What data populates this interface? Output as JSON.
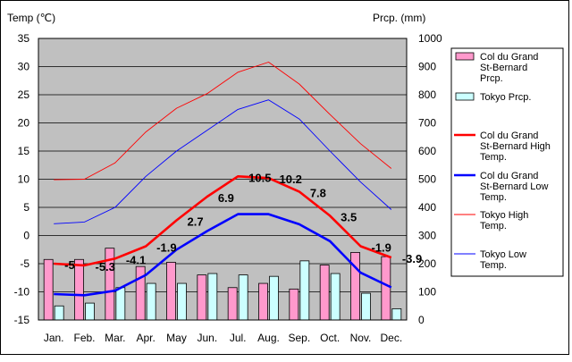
{
  "chart_data": {
    "type": "bar+line",
    "title": "",
    "left_axis_label": "Temp (℃)",
    "right_axis_label": "Prcp. (mm)",
    "left_ylim": [
      -15,
      35
    ],
    "left_ticks": [
      35,
      30,
      25,
      20,
      15,
      10,
      5,
      0,
      -5,
      -10,
      -15
    ],
    "right_ylim": [
      0,
      1000
    ],
    "right_ticks": [
      1000,
      900,
      800,
      700,
      600,
      500,
      400,
      300,
      200,
      100,
      0
    ],
    "categories": [
      "Jan.",
      "Feb.",
      "Mar.",
      "Apr.",
      "May",
      "Jun.",
      "Jul.",
      "Aug.",
      "Sep.",
      "Oct.",
      "Nov.",
      "Dec."
    ],
    "bar_series": [
      {
        "name": "Col du Grand St-Bernard Prcp.",
        "axis": "right",
        "color": "#ff99cc",
        "values": [
          215,
          215,
          255,
          190,
          205,
          160,
          115,
          130,
          110,
          195,
          240,
          225
        ]
      },
      {
        "name": "Tokyo Prcp.",
        "axis": "right",
        "color": "#ccffff",
        "values": [
          50,
          60,
          115,
          130,
          130,
          165,
          160,
          155,
          210,
          165,
          95,
          40
        ]
      }
    ],
    "line_series": [
      {
        "name": "Col du Grand St-Bernard High Temp.",
        "axis": "left",
        "color": "#ff0000",
        "width": 2.6,
        "values": [
          -5,
          -5.3,
          -4.1,
          -1.9,
          2.7,
          6.9,
          10.5,
          10.2,
          7.8,
          3.5,
          -1.9,
          -3.9
        ],
        "labels": [
          "-5",
          "-5.3",
          "-4.1",
          "-1.9",
          "2.7",
          "6.9",
          "10.5",
          "10.2",
          "7.8",
          "3.5",
          "-1.9",
          "-3.9"
        ]
      },
      {
        "name": "Col du Grand St-Bernard Low Temp.",
        "axis": "left",
        "color": "#0000ff",
        "width": 2.6,
        "values": [
          -10.4,
          -10.6,
          -9.8,
          -7,
          -2.5,
          0.8,
          3.8,
          3.8,
          2,
          -1,
          -6.6,
          -9.2
        ]
      },
      {
        "name": "Tokyo High Temp.",
        "axis": "left",
        "color": "#ff0000",
        "width": 0.9,
        "values": [
          9.9,
          10,
          12.9,
          18.4,
          22.6,
          25.2,
          29,
          30.8,
          26.9,
          21.5,
          16.3,
          11.9
        ]
      },
      {
        "name": "Tokyo Low Temp.",
        "axis": "left",
        "color": "#0000ff",
        "width": 0.9,
        "values": [
          2.1,
          2.4,
          5,
          10.5,
          15,
          18.7,
          22.4,
          24.1,
          20.7,
          15,
          9.5,
          4.6
        ]
      }
    ],
    "legend": [
      {
        "label": "Col du Grand St-Bernard Prcp.",
        "kind": "bar",
        "color": "#ff99cc",
        "lines": [
          "Col du Grand",
          "St-Bernard",
          "Prcp."
        ]
      },
      {
        "label": "Tokyo Prcp.",
        "kind": "bar",
        "color": "#ccffff",
        "lines": [
          "Tokyo Prcp."
        ]
      },
      {
        "label": "Col du Grand St-Bernard High Temp.",
        "kind": "line",
        "color": "#ff0000",
        "width": 2.6,
        "lines": [
          "Col du Grand",
          "St-Bernard High",
          "Temp."
        ]
      },
      {
        "label": "Col du Grand St-Bernard Low Temp.",
        "kind": "line",
        "color": "#0000ff",
        "width": 2.6,
        "lines": [
          "Col du Grand",
          "St-Bernard Low",
          "Temp."
        ]
      },
      {
        "label": "Tokyo High Temp.",
        "kind": "line",
        "color": "#ff0000",
        "width": 0.9,
        "lines": [
          "Tokyo High",
          "Temp."
        ]
      },
      {
        "label": "Tokyo Low Temp.",
        "kind": "line",
        "color": "#0000ff",
        "width": 0.9,
        "lines": [
          "Tokyo Low",
          "Temp."
        ]
      }
    ],
    "legend_position": "right",
    "grid": "horizontal",
    "plot_background": "#c0c0c0"
  }
}
